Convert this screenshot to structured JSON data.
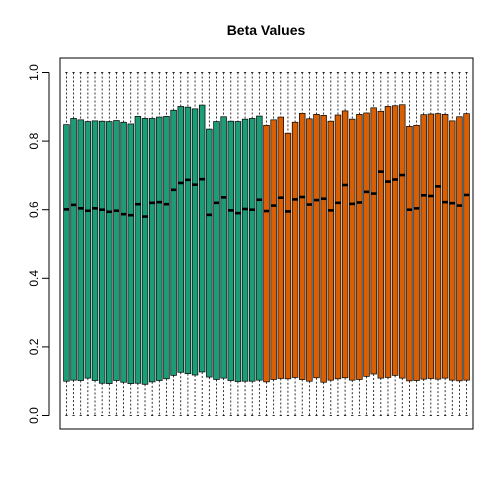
{
  "chart_data": {
    "type": "boxplot",
    "title": "Beta Values",
    "xlabel": "",
    "ylabel": "",
    "ylim": [
      0,
      1
    ],
    "y_ticks": [
      0.0,
      0.2,
      0.4,
      0.6,
      0.8,
      1.0
    ],
    "y_tick_labels": [
      "0.0",
      "0.2",
      "0.4",
      "0.6",
      "0.8",
      "1.0"
    ],
    "grid": false,
    "legend": "none",
    "colors": {
      "group_a": "#1b9e77",
      "group_b": "#d95f02"
    },
    "boxes": [
      {
        "group": "group_a",
        "min": 0.0,
        "q1": 0.1,
        "median": 0.601,
        "q3": 0.848,
        "max": 1.0
      },
      {
        "group": "group_a",
        "min": 0.0,
        "q1": 0.103,
        "median": 0.614,
        "q3": 0.866,
        "max": 1.0
      },
      {
        "group": "group_a",
        "min": 0.0,
        "q1": 0.102,
        "median": 0.604,
        "q3": 0.862,
        "max": 1.0
      },
      {
        "group": "group_a",
        "min": 0.0,
        "q1": 0.109,
        "median": 0.597,
        "q3": 0.857,
        "max": 1.0
      },
      {
        "group": "group_a",
        "min": 0.0,
        "q1": 0.102,
        "median": 0.604,
        "q3": 0.859,
        "max": 1.0
      },
      {
        "group": "group_a",
        "min": 0.0,
        "q1": 0.094,
        "median": 0.6,
        "q3": 0.858,
        "max": 1.0
      },
      {
        "group": "group_a",
        "min": 0.0,
        "q1": 0.093,
        "median": 0.594,
        "q3": 0.857,
        "max": 1.0
      },
      {
        "group": "group_a",
        "min": 0.0,
        "q1": 0.102,
        "median": 0.597,
        "q3": 0.86,
        "max": 1.0
      },
      {
        "group": "group_a",
        "min": 0.0,
        "q1": 0.097,
        "median": 0.587,
        "q3": 0.855,
        "max": 1.0
      },
      {
        "group": "group_a",
        "min": 0.0,
        "q1": 0.093,
        "median": 0.584,
        "q3": 0.85,
        "max": 1.0
      },
      {
        "group": "group_a",
        "min": 0.0,
        "q1": 0.094,
        "median": 0.616,
        "q3": 0.872,
        "max": 1.0
      },
      {
        "group": "group_a",
        "min": 0.0,
        "q1": 0.091,
        "median": 0.58,
        "q3": 0.866,
        "max": 1.0
      },
      {
        "group": "group_a",
        "min": 0.0,
        "q1": 0.098,
        "median": 0.62,
        "q3": 0.866,
        "max": 1.0
      },
      {
        "group": "group_a",
        "min": 0.0,
        "q1": 0.102,
        "median": 0.622,
        "q3": 0.87,
        "max": 1.0
      },
      {
        "group": "group_a",
        "min": 0.0,
        "q1": 0.107,
        "median": 0.616,
        "q3": 0.872,
        "max": 1.0
      },
      {
        "group": "group_a",
        "min": 0.0,
        "q1": 0.117,
        "median": 0.658,
        "q3": 0.89,
        "max": 1.0
      },
      {
        "group": "group_a",
        "min": 0.0,
        "q1": 0.126,
        "median": 0.678,
        "q3": 0.901,
        "max": 1.0
      },
      {
        "group": "group_a",
        "min": 0.0,
        "q1": 0.122,
        "median": 0.687,
        "q3": 0.899,
        "max": 1.0
      },
      {
        "group": "group_a",
        "min": 0.0,
        "q1": 0.118,
        "median": 0.673,
        "q3": 0.894,
        "max": 1.0
      },
      {
        "group": "group_a",
        "min": 0.0,
        "q1": 0.127,
        "median": 0.689,
        "q3": 0.905,
        "max": 1.0
      },
      {
        "group": "group_a",
        "min": 0.0,
        "q1": 0.112,
        "median": 0.585,
        "q3": 0.835,
        "max": 1.0
      },
      {
        "group": "group_a",
        "min": 0.0,
        "q1": 0.105,
        "median": 0.62,
        "q3": 0.857,
        "max": 1.0
      },
      {
        "group": "group_a",
        "min": 0.0,
        "q1": 0.109,
        "median": 0.636,
        "q3": 0.871,
        "max": 1.0
      },
      {
        "group": "group_a",
        "min": 0.0,
        "q1": 0.102,
        "median": 0.598,
        "q3": 0.858,
        "max": 1.0
      },
      {
        "group": "group_a",
        "min": 0.0,
        "q1": 0.099,
        "median": 0.59,
        "q3": 0.857,
        "max": 1.0
      },
      {
        "group": "group_a",
        "min": 0.0,
        "q1": 0.1,
        "median": 0.602,
        "q3": 0.864,
        "max": 1.0
      },
      {
        "group": "group_a",
        "min": 0.0,
        "q1": 0.1,
        "median": 0.6,
        "q3": 0.866,
        "max": 1.0
      },
      {
        "group": "group_a",
        "min": 0.0,
        "q1": 0.103,
        "median": 0.629,
        "q3": 0.873,
        "max": 1.0
      },
      {
        "group": "group_b",
        "min": 0.0,
        "q1": 0.098,
        "median": 0.596,
        "q3": 0.846,
        "max": 1.0
      },
      {
        "group": "group_b",
        "min": 0.0,
        "q1": 0.105,
        "median": 0.612,
        "q3": 0.862,
        "max": 1.0
      },
      {
        "group": "group_b",
        "min": 0.0,
        "q1": 0.108,
        "median": 0.635,
        "q3": 0.87,
        "max": 1.0
      },
      {
        "group": "group_b",
        "min": 0.0,
        "q1": 0.107,
        "median": 0.595,
        "q3": 0.823,
        "max": 1.0
      },
      {
        "group": "group_b",
        "min": 0.0,
        "q1": 0.111,
        "median": 0.63,
        "q3": 0.855,
        "max": 1.0
      },
      {
        "group": "group_b",
        "min": 0.0,
        "q1": 0.105,
        "median": 0.637,
        "q3": 0.881,
        "max": 1.0
      },
      {
        "group": "group_b",
        "min": 0.0,
        "q1": 0.1,
        "median": 0.615,
        "q3": 0.865,
        "max": 1.0
      },
      {
        "group": "group_b",
        "min": 0.0,
        "q1": 0.11,
        "median": 0.628,
        "q3": 0.878,
        "max": 1.0
      },
      {
        "group": "group_b",
        "min": 0.0,
        "q1": 0.097,
        "median": 0.632,
        "q3": 0.875,
        "max": 1.0
      },
      {
        "group": "group_b",
        "min": 0.0,
        "q1": 0.103,
        "median": 0.598,
        "q3": 0.858,
        "max": 1.0
      },
      {
        "group": "group_b",
        "min": 0.0,
        "q1": 0.107,
        "median": 0.62,
        "q3": 0.876,
        "max": 1.0
      },
      {
        "group": "group_b",
        "min": 0.0,
        "q1": 0.11,
        "median": 0.672,
        "q3": 0.888,
        "max": 1.0
      },
      {
        "group": "group_b",
        "min": 0.0,
        "q1": 0.103,
        "median": 0.617,
        "q3": 0.864,
        "max": 1.0
      },
      {
        "group": "group_b",
        "min": 0.0,
        "q1": 0.105,
        "median": 0.621,
        "q3": 0.878,
        "max": 1.0
      },
      {
        "group": "group_b",
        "min": 0.0,
        "q1": 0.114,
        "median": 0.652,
        "q3": 0.882,
        "max": 1.0
      },
      {
        "group": "group_b",
        "min": 0.0,
        "q1": 0.121,
        "median": 0.647,
        "q3": 0.897,
        "max": 1.0
      },
      {
        "group": "group_b",
        "min": 0.0,
        "q1": 0.109,
        "median": 0.711,
        "q3": 0.887,
        "max": 1.0
      },
      {
        "group": "group_b",
        "min": 0.0,
        "q1": 0.111,
        "median": 0.682,
        "q3": 0.901,
        "max": 1.0
      },
      {
        "group": "group_b",
        "min": 0.0,
        "q1": 0.117,
        "median": 0.688,
        "q3": 0.903,
        "max": 1.0
      },
      {
        "group": "group_b",
        "min": 0.0,
        "q1": 0.109,
        "median": 0.701,
        "q3": 0.906,
        "max": 1.0
      },
      {
        "group": "group_b",
        "min": 0.0,
        "q1": 0.101,
        "median": 0.6,
        "q3": 0.843,
        "max": 1.0
      },
      {
        "group": "group_b",
        "min": 0.0,
        "q1": 0.102,
        "median": 0.604,
        "q3": 0.846,
        "max": 1.0
      },
      {
        "group": "group_b",
        "min": 0.0,
        "q1": 0.106,
        "median": 0.642,
        "q3": 0.877,
        "max": 1.0
      },
      {
        "group": "group_b",
        "min": 0.0,
        "q1": 0.108,
        "median": 0.64,
        "q3": 0.879,
        "max": 1.0
      },
      {
        "group": "group_b",
        "min": 0.0,
        "q1": 0.106,
        "median": 0.668,
        "q3": 0.88,
        "max": 1.0
      },
      {
        "group": "group_b",
        "min": 0.0,
        "q1": 0.109,
        "median": 0.622,
        "q3": 0.878,
        "max": 1.0
      },
      {
        "group": "group_b",
        "min": 0.0,
        "q1": 0.103,
        "median": 0.619,
        "q3": 0.859,
        "max": 1.0
      },
      {
        "group": "group_b",
        "min": 0.0,
        "q1": 0.101,
        "median": 0.612,
        "q3": 0.871,
        "max": 1.0
      },
      {
        "group": "group_b",
        "min": 0.0,
        "q1": 0.103,
        "median": 0.643,
        "q3": 0.88,
        "max": 1.0
      }
    ]
  }
}
